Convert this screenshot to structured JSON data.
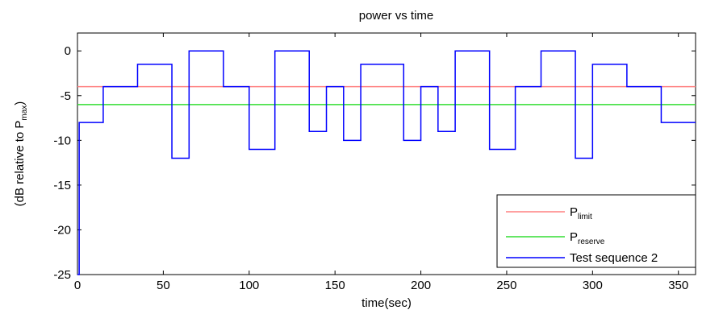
{
  "chart_data": {
    "type": "line",
    "title": "power vs time",
    "xlabel": "time(sec)",
    "ylabel": {
      "prefix": "(dB relative to P",
      "sub": "max",
      "suffix": ")"
    },
    "xlim": [
      0,
      360
    ],
    "ylim": [
      -25,
      2
    ],
    "xticks": [
      0,
      50,
      100,
      150,
      200,
      250,
      300,
      350
    ],
    "yticks": [
      0,
      -5,
      -10,
      -15,
      -20,
      -25
    ],
    "grid": false,
    "legend_position": "bottom-right",
    "series": [
      {
        "name": "P_limit",
        "legend": {
          "main": "P",
          "sub": "limit"
        },
        "color": "#ff8080",
        "points": [
          [
            0,
            -4
          ],
          [
            360,
            -4
          ]
        ]
      },
      {
        "name": "P_reserve",
        "legend": {
          "main": "P",
          "sub": "reserve"
        },
        "color": "#33dd33",
        "points": [
          [
            0,
            -6
          ],
          [
            360,
            -6
          ]
        ]
      },
      {
        "name": "Test sequence 2",
        "legend": {
          "main": "Test sequence 2",
          "sub": ""
        },
        "color": "#0000ff",
        "step": true,
        "points": [
          [
            0,
            -25
          ],
          [
            1,
            -8
          ],
          [
            15,
            -4
          ],
          [
            35,
            -1.5
          ],
          [
            50,
            -1.5
          ],
          [
            55,
            -12
          ],
          [
            65,
            0
          ],
          [
            80,
            0
          ],
          [
            85,
            -4
          ],
          [
            100,
            -11
          ],
          [
            115,
            0
          ],
          [
            130,
            0
          ],
          [
            135,
            -9
          ],
          [
            145,
            -4
          ],
          [
            155,
            -10
          ],
          [
            165,
            -1.5
          ],
          [
            185,
            -1.5
          ],
          [
            190,
            -10
          ],
          [
            200,
            -4
          ],
          [
            210,
            -9
          ],
          [
            220,
            0
          ],
          [
            235,
            0
          ],
          [
            240,
            -11
          ],
          [
            255,
            -4
          ],
          [
            270,
            0
          ],
          [
            285,
            0
          ],
          [
            290,
            -12
          ],
          [
            300,
            -1.5
          ],
          [
            320,
            -4
          ],
          [
            335,
            -4
          ],
          [
            340,
            -8
          ],
          [
            360,
            -8
          ]
        ]
      }
    ]
  }
}
